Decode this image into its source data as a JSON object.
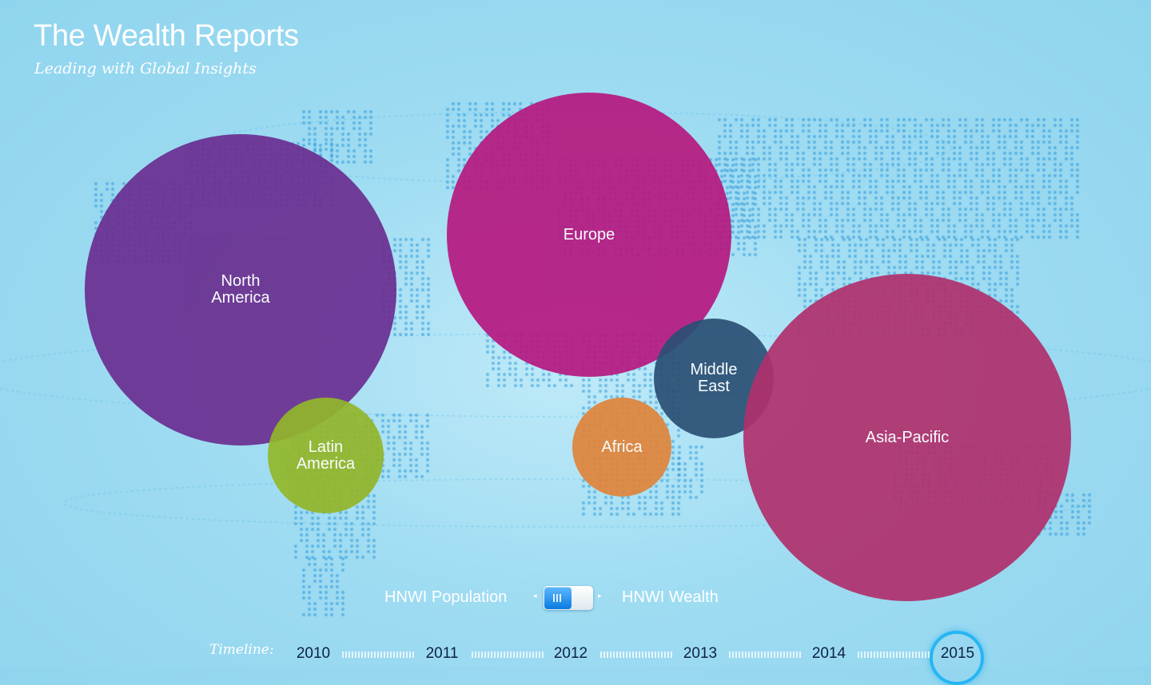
{
  "header": {
    "title": "The Wealth Reports",
    "subtitle": "Leading with Global Insights"
  },
  "regions": [
    {
      "id": "north-america",
      "label": "North\nAmerica",
      "color": "#6a2e90"
    },
    {
      "id": "europe",
      "label": "Europe",
      "color": "#b5187f"
    },
    {
      "id": "latin-america",
      "label": "Latin\nAmerica",
      "color": "#93b62a"
    },
    {
      "id": "africa",
      "label": "Africa",
      "color": "#e0843a"
    },
    {
      "id": "middle-east",
      "label": "Middle\nEast",
      "color": "#2a4f73"
    },
    {
      "id": "asia-pacific",
      "label": "Asia-Pacific",
      "color": "#b0306d"
    }
  ],
  "toggle": {
    "left_label": "HNWI Population",
    "right_label": "HNWI Wealth",
    "selected": "HNWI Population"
  },
  "timeline": {
    "label": "Timeline:",
    "years": [
      "2010",
      "2011",
      "2012",
      "2013",
      "2014",
      "2015"
    ],
    "selected": "2015",
    "ring_color": "#26b6f2"
  }
}
